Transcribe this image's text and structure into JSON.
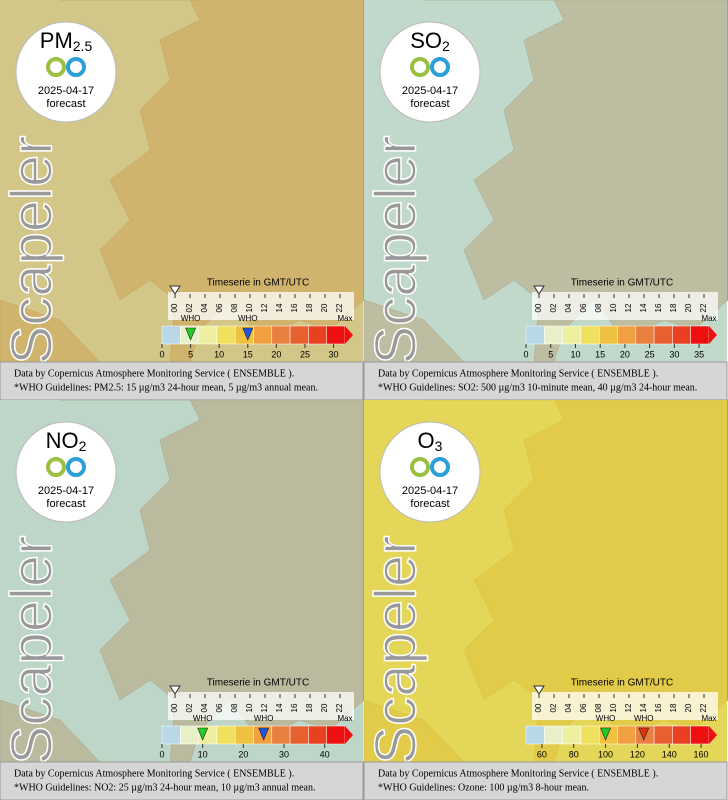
{
  "hours": [
    "00",
    "02",
    "04",
    "06",
    "08",
    "10",
    "12",
    "14",
    "16",
    "18",
    "20",
    "22"
  ],
  "watermark": "Scapeler",
  "timeserie_label": "Timeserie in GMT/UTC",
  "who_label": "WHO",
  "max_label": "Max",
  "footer_source": "Data by Copernicus Atmosphere Monitoring Service ( ENSEMBLE ).",
  "panels": [
    {
      "name": "PM",
      "sub": "2.5",
      "date": "2025-04-17",
      "forecast": "forecast",
      "legend_lim": [
        0,
        32
      ],
      "legend_ticks": [
        0,
        5,
        10,
        15,
        20,
        25,
        30
      ],
      "who_markers": [
        {
          "value": 5,
          "color": "#22cc22"
        },
        {
          "value": 15,
          "color": "#2255dd"
        }
      ],
      "footer_who": "*WHO Guidelines: PM2.5: 15 µg/m3 24-hour mean, 5 µg/m3 annual mean."
    },
    {
      "name": "SO",
      "sub": "2",
      "date": "2025-04-17",
      "forecast": "forecast",
      "legend_lim": [
        0,
        37
      ],
      "legend_ticks": [
        0,
        5,
        10,
        15,
        20,
        25,
        30,
        35
      ],
      "who_markers": [],
      "footer_who": "*WHO Guidelines: SO2: 500 µg/m3 10-minute mean, 40 µg/m3 24-hour mean."
    },
    {
      "name": "NO",
      "sub": "2",
      "date": "2025-04-17",
      "forecast": "forecast",
      "legend_lim": [
        0,
        45
      ],
      "legend_ticks": [
        0,
        10,
        20,
        30,
        40
      ],
      "who_markers": [
        {
          "value": 10,
          "color": "#22cc22"
        },
        {
          "value": 25,
          "color": "#2255dd"
        }
      ],
      "footer_who": "*WHO Guidelines: NO2: 25 µg/m3 24-hour mean, 10 µg/m3 annual mean."
    },
    {
      "name": "O",
      "sub": "3",
      "date": "2025-04-17",
      "forecast": "forecast",
      "legend_lim": [
        50,
        165
      ],
      "legend_ticks": [
        60,
        80,
        100,
        120,
        140,
        160
      ],
      "who_markers": [
        {
          "value": 100,
          "color": "#22cc22"
        },
        {
          "value": 124,
          "color": "#dd3311"
        }
      ],
      "footer_who": "*WHO Guidelines: Ozone: 100 µg/m3 8-hour mean."
    }
  ]
}
